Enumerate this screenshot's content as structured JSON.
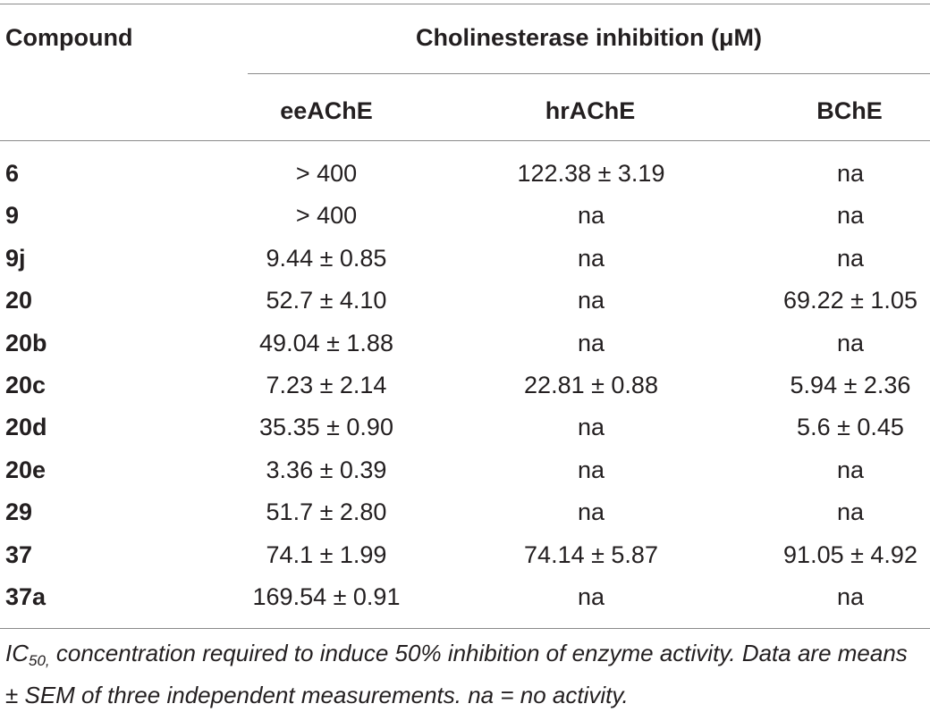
{
  "table": {
    "header": {
      "compound": "Compound",
      "group": "Cholinesterase inhibition (μM)",
      "columns": [
        "eeAChE",
        "hrAChE",
        "BChE"
      ]
    },
    "rows": [
      {
        "compound": "6",
        "eeAChE": "> 400",
        "hrAChE": "122.38 ± 3.19",
        "BChE": "na"
      },
      {
        "compound": "9",
        "eeAChE": "> 400",
        "hrAChE": "na",
        "BChE": "na"
      },
      {
        "compound": "9j",
        "eeAChE": "9.44 ± 0.85",
        "hrAChE": "na",
        "BChE": "na"
      },
      {
        "compound": "20",
        "eeAChE": "52.7 ± 4.10",
        "hrAChE": "na",
        "BChE": "69.22 ± 1.05"
      },
      {
        "compound": "20b",
        "eeAChE": "49.04 ± 1.88",
        "hrAChE": "na",
        "BChE": "na"
      },
      {
        "compound": "20c",
        "eeAChE": "7.23 ± 2.14",
        "hrAChE": "22.81 ± 0.88",
        "BChE": "5.94 ± 2.36"
      },
      {
        "compound": "20d",
        "eeAChE": "35.35 ± 0.90",
        "hrAChE": "na",
        "BChE": "5.6 ± 0.45"
      },
      {
        "compound": "20e",
        "eeAChE": "3.36 ± 0.39",
        "hrAChE": "na",
        "BChE": "na"
      },
      {
        "compound": "29",
        "eeAChE": "51.7 ± 2.80",
        "hrAChE": "na",
        "BChE": "na"
      },
      {
        "compound": "37",
        "eeAChE": "74.1 ± 1.99",
        "hrAChE": "74.14 ± 5.87",
        "BChE": "91.05 ± 4.92"
      },
      {
        "compound": "37a",
        "eeAChE": "169.54 ± 0.91",
        "hrAChE": "na",
        "BChE": "na"
      }
    ]
  },
  "footnote": {
    "ic_main": "IC",
    "ic_sub": "50,",
    "text": " concentration required to induce 50% inhibition of enzyme activity. Data are means ± SEM of three independent measurements. na = no activity."
  }
}
